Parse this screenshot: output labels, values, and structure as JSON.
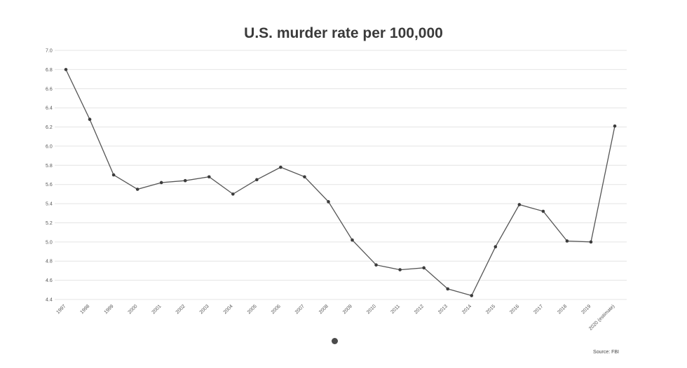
{
  "chart_data": {
    "type": "line",
    "title": "U.S. murder rate per 100,000",
    "xlabel": "",
    "ylabel": "",
    "source": "Source: FBI",
    "ylim": [
      4.4,
      7.0
    ],
    "yticks": [
      "7.0",
      "6.8",
      "6.6",
      "6.4",
      "6.2",
      "6.0",
      "5.8",
      "5.6",
      "5.4",
      "5.2",
      "5.0",
      "4.8",
      "4.6",
      "4.4"
    ],
    "categories": [
      "1997",
      "1998",
      "1999",
      "2000",
      "2001",
      "2002",
      "2003",
      "2004",
      "2005",
      "2006",
      "2007",
      "2008",
      "2009",
      "2010",
      "2011",
      "2012",
      "2013",
      "2014",
      "2015",
      "2016",
      "2017",
      "2018",
      "2019",
      "2020 (estimate)"
    ],
    "series": [
      {
        "values": [
          6.8,
          6.28,
          5.7,
          5.55,
          5.62,
          5.64,
          5.68,
          5.5,
          5.65,
          5.78,
          5.68,
          5.42,
          5.02,
          4.76,
          4.71,
          4.73,
          4.51,
          4.44,
          4.95,
          5.39,
          5.32,
          5.01,
          5.0,
          6.21
        ],
        "color": "#555555"
      }
    ],
    "grid": true,
    "legend": "none"
  }
}
